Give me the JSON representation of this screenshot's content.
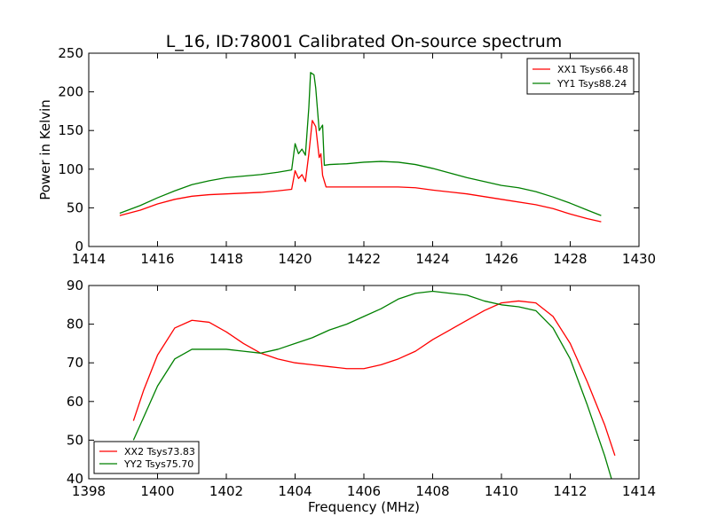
{
  "chart_data": [
    {
      "type": "line",
      "title": "L_16, ID:78001 Calibrated On-source spectrum",
      "xlabel": "",
      "ylabel": "Power in Kelvin",
      "xlim": [
        1414,
        1430
      ],
      "ylim": [
        0,
        250
      ],
      "xticks": [
        1414,
        1416,
        1418,
        1420,
        1422,
        1424,
        1426,
        1428,
        1430
      ],
      "yticks": [
        0,
        50,
        100,
        150,
        200,
        250
      ],
      "grid": false,
      "legend_position": "top-right",
      "series": [
        {
          "name": "XX1 Tsys66.48",
          "color": "#ff0000",
          "points": [
            [
              1414.9,
              40
            ],
            [
              1415.5,
              47
            ],
            [
              1416.0,
              55
            ],
            [
              1416.5,
              61
            ],
            [
              1417.0,
              65
            ],
            [
              1417.5,
              67
            ],
            [
              1418.0,
              68
            ],
            [
              1418.5,
              69
            ],
            [
              1419.0,
              70
            ],
            [
              1419.5,
              72
            ],
            [
              1419.9,
              74
            ],
            [
              1420.0,
              98
            ],
            [
              1420.1,
              88
            ],
            [
              1420.2,
              93
            ],
            [
              1420.3,
              84
            ],
            [
              1420.4,
              120
            ],
            [
              1420.5,
              163
            ],
            [
              1420.6,
              155
            ],
            [
              1420.7,
              115
            ],
            [
              1420.75,
              120
            ],
            [
              1420.8,
              92
            ],
            [
              1420.9,
              77
            ],
            [
              1421.5,
              77
            ],
            [
              1422.0,
              77
            ],
            [
              1422.5,
              77
            ],
            [
              1423.0,
              77
            ],
            [
              1423.5,
              76
            ],
            [
              1424.0,
              73
            ],
            [
              1425.0,
              68
            ],
            [
              1426.0,
              61
            ],
            [
              1427.0,
              54
            ],
            [
              1427.5,
              49
            ],
            [
              1428.0,
              42
            ],
            [
              1428.5,
              36
            ],
            [
              1428.9,
              32
            ]
          ]
        },
        {
          "name": "YY1 Tsys88.24",
          "color": "#008000",
          "points": [
            [
              1414.9,
              43
            ],
            [
              1415.5,
              53
            ],
            [
              1416.0,
              63
            ],
            [
              1416.5,
              72
            ],
            [
              1417.0,
              80
            ],
            [
              1417.5,
              85
            ],
            [
              1418.0,
              89
            ],
            [
              1418.5,
              91
            ],
            [
              1419.0,
              93
            ],
            [
              1419.5,
              96
            ],
            [
              1419.9,
              99
            ],
            [
              1420.0,
              133
            ],
            [
              1420.1,
              120
            ],
            [
              1420.2,
              126
            ],
            [
              1420.3,
              118
            ],
            [
              1420.4,
              180
            ],
            [
              1420.45,
              225
            ],
            [
              1420.55,
              222
            ],
            [
              1420.6,
              205
            ],
            [
              1420.7,
              150
            ],
            [
              1420.8,
              157
            ],
            [
              1420.85,
              105
            ],
            [
              1421.0,
              106
            ],
            [
              1421.5,
              107
            ],
            [
              1422.0,
              109
            ],
            [
              1422.5,
              110
            ],
            [
              1423.0,
              109
            ],
            [
              1423.5,
              106
            ],
            [
              1424.0,
              101
            ],
            [
              1424.5,
              95
            ],
            [
              1425.0,
              89
            ],
            [
              1425.5,
              84
            ],
            [
              1426.0,
              79
            ],
            [
              1426.5,
              76
            ],
            [
              1427.0,
              71
            ],
            [
              1427.5,
              64
            ],
            [
              1428.0,
              56
            ],
            [
              1428.5,
              47
            ],
            [
              1428.9,
              40
            ]
          ]
        }
      ]
    },
    {
      "type": "line",
      "title": "",
      "xlabel": "Frequency (MHz)",
      "ylabel": "",
      "xlim": [
        1398,
        1414
      ],
      "ylim": [
        40,
        90
      ],
      "xticks": [
        1398,
        1400,
        1402,
        1404,
        1406,
        1408,
        1410,
        1412,
        1414
      ],
      "yticks": [
        40,
        50,
        60,
        70,
        80,
        90
      ],
      "grid": false,
      "legend_position": "bottom-left",
      "series": [
        {
          "name": "XX2 Tsys73.83",
          "color": "#ff0000",
          "points": [
            [
              1399.3,
              55
            ],
            [
              1399.6,
              63
            ],
            [
              1400.0,
              72
            ],
            [
              1400.5,
              79
            ],
            [
              1401.0,
              81
            ],
            [
              1401.5,
              80.5
            ],
            [
              1402.0,
              78
            ],
            [
              1402.5,
              75
            ],
            [
              1403.0,
              72.5
            ],
            [
              1403.5,
              71
            ],
            [
              1404.0,
              70
            ],
            [
              1404.5,
              69.5
            ],
            [
              1405.0,
              69
            ],
            [
              1405.5,
              68.5
            ],
            [
              1406.0,
              68.5
            ],
            [
              1406.5,
              69.5
            ],
            [
              1407.0,
              71
            ],
            [
              1407.5,
              73
            ],
            [
              1408.0,
              76
            ],
            [
              1408.5,
              78.5
            ],
            [
              1409.0,
              81
            ],
            [
              1409.5,
              83.5
            ],
            [
              1410.0,
              85.5
            ],
            [
              1410.5,
              86
            ],
            [
              1411.0,
              85.5
            ],
            [
              1411.5,
              82
            ],
            [
              1412.0,
              75
            ],
            [
              1412.5,
              65
            ],
            [
              1413.0,
              54
            ],
            [
              1413.3,
              46
            ]
          ]
        },
        {
          "name": "YY2 Tsys75.70",
          "color": "#008000",
          "points": [
            [
              1399.3,
              50
            ],
            [
              1399.6,
              56
            ],
            [
              1400.0,
              64
            ],
            [
              1400.5,
              71
            ],
            [
              1401.0,
              73.5
            ],
            [
              1401.5,
              73.5
            ],
            [
              1402.0,
              73.5
            ],
            [
              1402.5,
              73
            ],
            [
              1403.0,
              72.5
            ],
            [
              1403.5,
              73.5
            ],
            [
              1404.0,
              75
            ],
            [
              1404.5,
              76.5
            ],
            [
              1405.0,
              78.5
            ],
            [
              1405.5,
              80
            ],
            [
              1406.0,
              82
            ],
            [
              1406.5,
              84
            ],
            [
              1407.0,
              86.5
            ],
            [
              1407.5,
              88
            ],
            [
              1408.0,
              88.5
            ],
            [
              1408.5,
              88
            ],
            [
              1409.0,
              87.5
            ],
            [
              1409.5,
              86
            ],
            [
              1410.0,
              85
            ],
            [
              1410.5,
              84.5
            ],
            [
              1411.0,
              83.5
            ],
            [
              1411.5,
              79
            ],
            [
              1412.0,
              71
            ],
            [
              1412.5,
              59
            ],
            [
              1413.0,
              46
            ],
            [
              1413.2,
              40
            ]
          ]
        }
      ]
    }
  ]
}
